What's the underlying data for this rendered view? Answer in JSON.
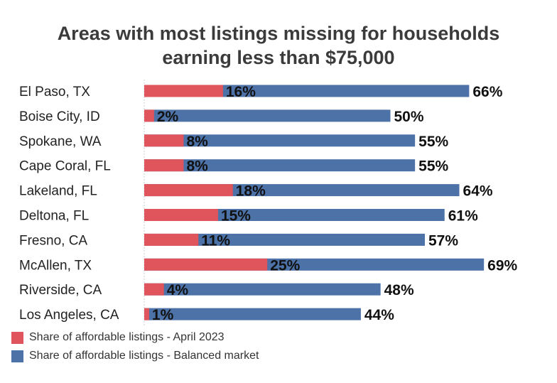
{
  "title_lines": [
    "Areas with most listings missing for households",
    "earning less than $75,000"
  ],
  "colors": {
    "april": "#E0555B",
    "balanced": "#4C72A8"
  },
  "legend": {
    "april": "Share of affordable listings - April 2023",
    "balanced": "Share of affordable listings - Balanced market"
  },
  "chart_data": {
    "type": "bar",
    "orientation": "horizontal",
    "title": "Areas with most listings missing for households earning less than $75,000",
    "categories": [
      "El Paso, TX",
      "Boise City, ID",
      "Spokane, WA",
      "Cape Coral, FL",
      "Lakeland, FL",
      "Deltona, FL",
      "Fresno, CA",
      "McAllen, TX",
      "Riverside, CA",
      "Los Angeles, CA"
    ],
    "series": [
      {
        "name": "Share of affordable listings - Balanced market",
        "values": [
          66,
          50,
          55,
          55,
          64,
          61,
          57,
          69,
          48,
          44
        ],
        "labels": [
          "66%",
          "50%",
          "55%",
          "55%",
          "64%",
          "61%",
          "57%",
          "69%",
          "48%",
          "44%"
        ]
      },
      {
        "name": "Share of affordable listings - April 2023",
        "values": [
          16,
          2,
          8,
          8,
          18,
          15,
          11,
          25,
          4,
          1
        ],
        "labels": [
          "16%",
          "2%",
          "8%",
          "8%",
          "18%",
          "15%",
          "11%",
          "25%",
          "4%",
          "1%"
        ]
      }
    ],
    "xlim": [
      0,
      100
    ],
    "unit": "%",
    "legend_position": "bottom-left"
  }
}
